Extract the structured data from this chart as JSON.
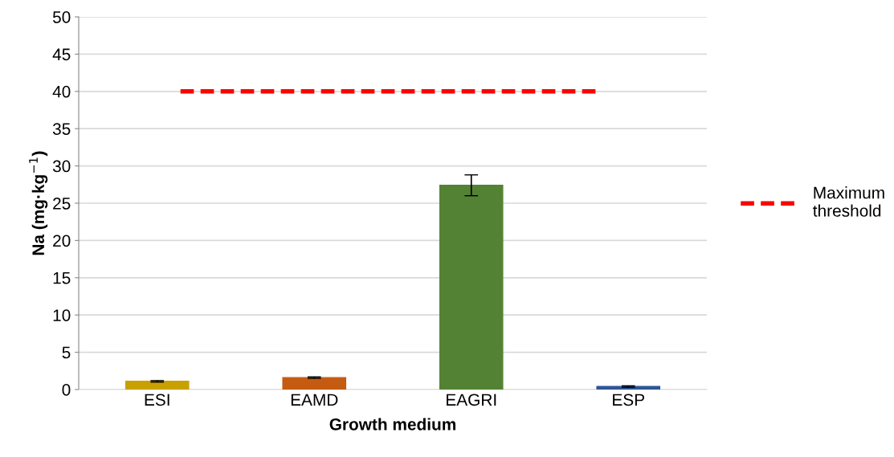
{
  "chart_data": {
    "type": "bar",
    "xlabel": "Growth medium",
    "ylabel": "Na (mg·kg$^{−1}$)",
    "categories": [
      "ESI",
      "EAMD",
      "EAGRI",
      "ESP"
    ],
    "values": [
      1.1,
      1.6,
      27.4,
      0.4
    ],
    "colors": [
      "#c9a000",
      "#c55a11",
      "#548235",
      "#2f5597"
    ],
    "errors": [
      0.1,
      0.1,
      1.4,
      0.1
    ],
    "ylim": [
      0,
      50
    ],
    "yticks": [
      0,
      5,
      10,
      15,
      20,
      25,
      30,
      35,
      40,
      45,
      50
    ],
    "ref_lines": [
      {
        "axis": "y",
        "value": 40,
        "label": "Maximum threshold",
        "color": "#ff0000",
        "line_style": "dashed"
      }
    ],
    "grid": "y",
    "legend": "right"
  }
}
